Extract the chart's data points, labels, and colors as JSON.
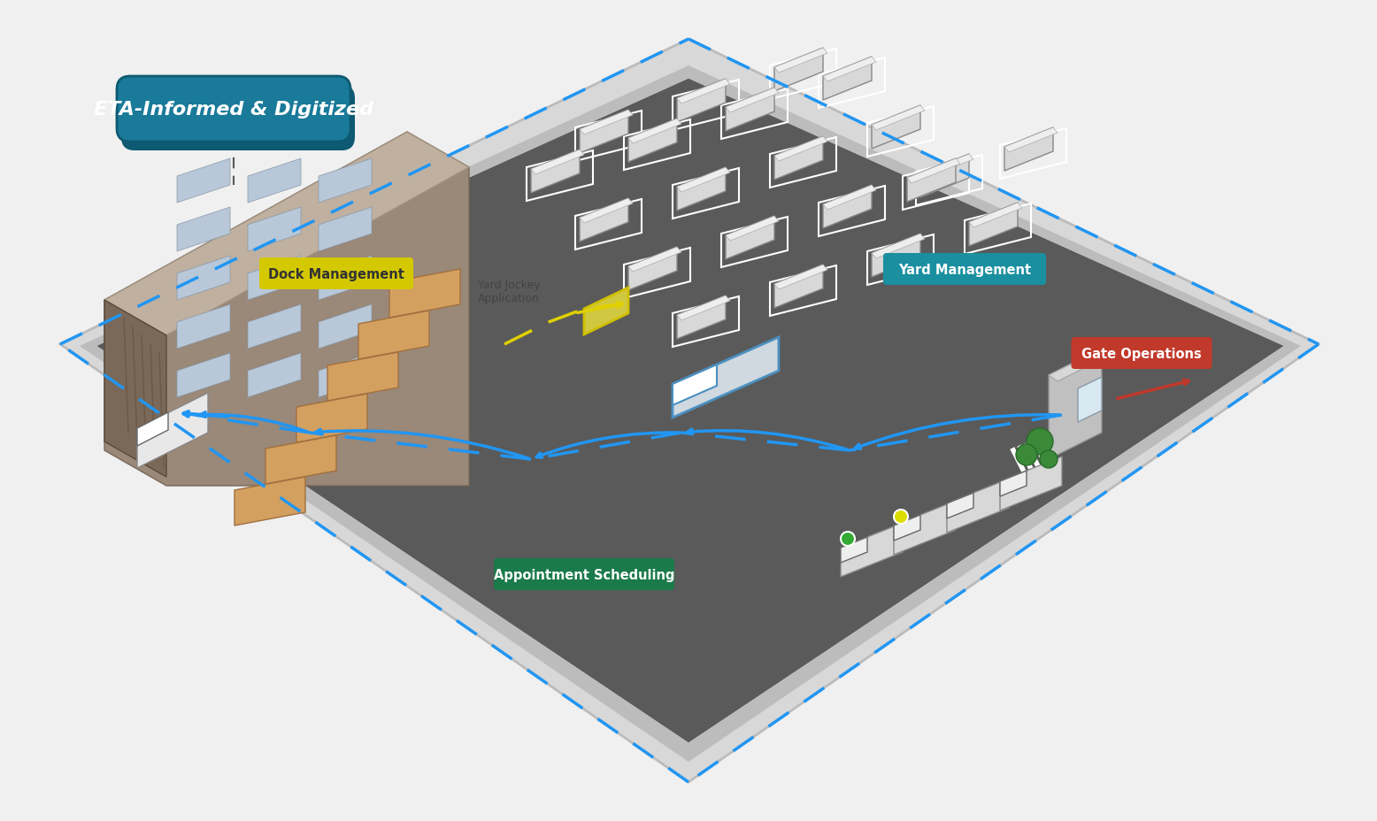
{
  "background_color": "#f0f0f0",
  "diamond_fill": "#e8e8e8",
  "diamond_edge_color": "#cccccc",
  "yard_fill": "#6b6b6b",
  "road_fill": "#888888",
  "border_color": "#d0d0d0",
  "dashed_border_color": "#2196F3",
  "title": "ETA-Informed & Digitized",
  "title_bg": "#1a7a9a",
  "title_shadow": "#0d5a72",
  "labels": {
    "yard_management": "Yard Management",
    "dock_management": "Dock Management",
    "gate_operations": "Gate Operations",
    "appointment_scheduling": "Appointment Scheduling",
    "yard_jockey": "Yard Jockey\nApplication"
  },
  "label_colors": {
    "yard_management": "#1a8fa0",
    "dock_management": "#d4c800",
    "gate_operations": "#c0392b",
    "appointment_scheduling": "#1a7a4a",
    "yard_jockey": "#555555"
  },
  "arrow_colors": {
    "blue_dash": "#2196F3",
    "yellow_dash": "#e0d000",
    "red_arrow": "#c0392b"
  }
}
